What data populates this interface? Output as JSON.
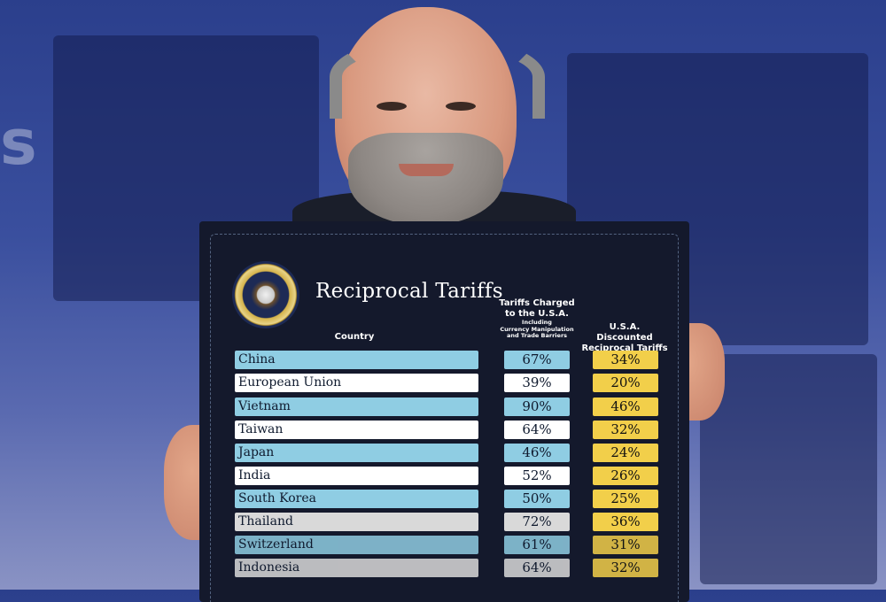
{
  "board": {
    "title": "Reciprocal Tariffs",
    "columns": {
      "country": "Country",
      "charged_line1": "Tariffs Charged",
      "charged_line2": "to the U.S.A.",
      "charged_note1": "Including",
      "charged_note2": "Currency Manipulation",
      "charged_note3": "and Trade Barriers",
      "discount_line1": "U.S.A. Discounted",
      "discount_line2": "Reciprocal Tariffs"
    },
    "rows": [
      {
        "country": "China",
        "charged": "67%",
        "discounted": "34%"
      },
      {
        "country": "European Union",
        "charged": "39%",
        "discounted": "20%"
      },
      {
        "country": "Vietnam",
        "charged": "90%",
        "discounted": "46%"
      },
      {
        "country": "Taiwan",
        "charged": "64%",
        "discounted": "32%"
      },
      {
        "country": "Japan",
        "charged": "46%",
        "discounted": "24%"
      },
      {
        "country": "India",
        "charged": "52%",
        "discounted": "26%"
      },
      {
        "country": "South Korea",
        "charged": "50%",
        "discounted": "25%"
      },
      {
        "country": "Thailand",
        "charged": "72%",
        "discounted": "36%"
      },
      {
        "country": "Switzerland",
        "charged": "61%",
        "discounted": "31%"
      },
      {
        "country": "Indonesia",
        "charged": "64%",
        "discounted": "32%"
      }
    ]
  },
  "colors": {
    "board_bg": "#14192c",
    "row_blue": "#8fcde3",
    "row_white": "#ffffff",
    "row_grey": "#d9d9d9",
    "discount_yellow": "#f2cf4a",
    "background_blue": "#3a4f9e"
  }
}
